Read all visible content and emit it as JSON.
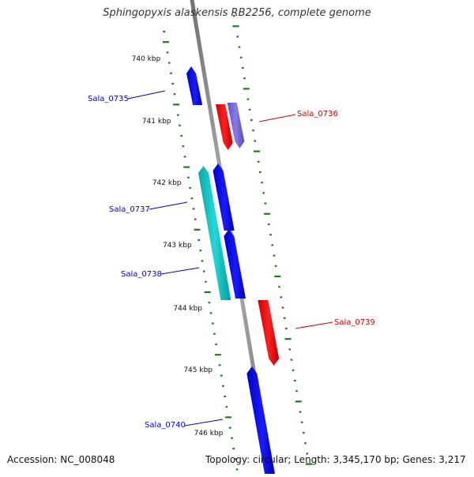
{
  "title": "Sphingopyxis alaskensis RB2256, complete genome",
  "accession": "Accession: NC_008048",
  "topology": "Topology: circular; Length: 3,345,170 bp; Genes: 3,217",
  "colors": {
    "background": "#ffffff",
    "backbone": "#8a8a8a",
    "ticks": "#1f7a1f",
    "forward_gene": "#0000ff",
    "reverse_gene": "#ff0000",
    "teal_gene": "#12c4c4",
    "purple_gene": "#7a6bd9"
  },
  "scale_labels": [
    "740 kbp",
    "741 kbp",
    "742 kbp",
    "743 kbp",
    "744 kbp",
    "745 kbp",
    "746 kbp"
  ],
  "genes": [
    {
      "name": "Sala_0735",
      "strand": "forward",
      "color": "blue",
      "labeled": true
    },
    {
      "name": "Sala_0736",
      "strand": "reverse",
      "color": "red",
      "labeled": true
    },
    {
      "name": "",
      "strand": "reverse",
      "color": "purple",
      "labeled": false
    },
    {
      "name": "Sala_0737",
      "strand": "forward",
      "color": "teal",
      "labeled": true
    },
    {
      "name": "",
      "strand": "forward",
      "color": "blue",
      "labeled": false
    },
    {
      "name": "Sala_0738",
      "strand": "forward",
      "color": "blue",
      "labeled": true
    },
    {
      "name": "Sala_0739",
      "strand": "reverse",
      "color": "red",
      "labeled": true
    },
    {
      "name": "Sala_0740",
      "strand": "forward",
      "color": "blue",
      "labeled": true
    }
  ]
}
